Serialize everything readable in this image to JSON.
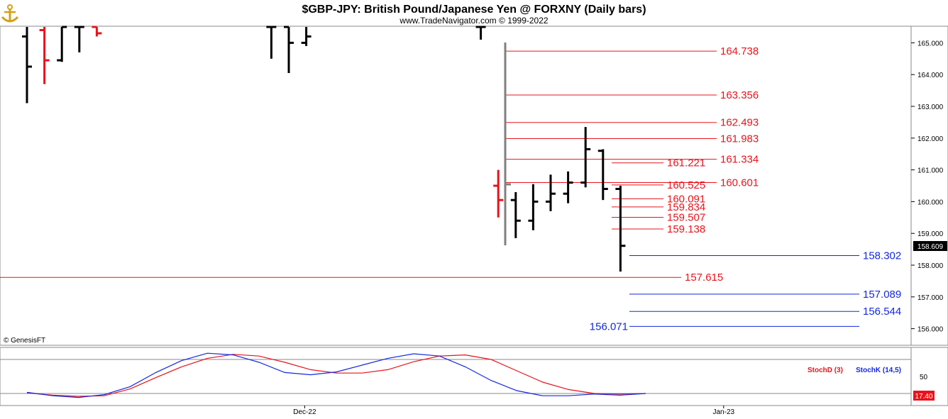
{
  "header": {
    "title": "$GBP-JPY:  British Pound/Japanese Yen @ FORXNY  (Daily bars)",
    "subtitle": "www.TradeNavigator.com © 1999-2022",
    "watermark": "© GenesisFT"
  },
  "price_badge": "158.609",
  "oscillator_badge": "17.40",
  "colors": {
    "up": "#000000",
    "down": "#e8131b",
    "red_level": "#e8131b",
    "blue_level": "#1428e0",
    "stoch_k": "#1428e0",
    "stoch_d": "#e8131b",
    "gap_marker": "#808080"
  },
  "chart_data": [
    {
      "type": "bar",
      "subtype": "ohlc",
      "title": "$GBP-JPY:  British Pound/Japanese Yen @ FORXNY  (Daily bars)",
      "ylim": [
        155.5,
        165.5
      ],
      "y_tick_labels": [
        "156.000",
        "157.000",
        "158.000",
        "159.000",
        "160.000",
        "161.000",
        "162.000",
        "163.000",
        "164.000",
        "165.000"
      ],
      "x_tick_labels": [
        {
          "label": "Dec-22",
          "bar": 14
        },
        {
          "label": "Jan-23",
          "bar": 38
        }
      ],
      "bars": [
        {
          "i": 0,
          "o": 165.2,
          "h": 165.5,
          "l": 163.1,
          "c": 164.25,
          "color": "up"
        },
        {
          "i": 1,
          "o": 165.4,
          "h": 165.5,
          "l": 163.7,
          "c": 164.45,
          "color": "down"
        },
        {
          "i": 2,
          "o": 164.45,
          "h": 165.5,
          "l": 164.4,
          "c": 165.5,
          "color": "up"
        },
        {
          "i": 3,
          "o": 165.5,
          "h": 165.5,
          "l": 164.7,
          "c": 165.5,
          "color": "up"
        },
        {
          "i": 4,
          "o": 165.5,
          "h": 165.5,
          "l": 165.2,
          "c": 165.3,
          "color": "down"
        },
        {
          "i": 14,
          "o": 165.5,
          "h": 165.5,
          "l": 164.5,
          "c": 165.5,
          "color": "up"
        },
        {
          "i": 15,
          "o": 165.5,
          "h": 165.5,
          "l": 164.05,
          "c": 165.0,
          "color": "up"
        },
        {
          "i": 16,
          "o": 165.0,
          "h": 165.5,
          "l": 164.9,
          "c": 165.2,
          "color": "up"
        },
        {
          "i": 26,
          "o": 165.5,
          "h": 165.5,
          "l": 165.1,
          "c": 165.5,
          "color": "up"
        },
        {
          "i": 27,
          "o": 160.5,
          "h": 161.0,
          "l": 159.5,
          "c": 160.05,
          "color": "down"
        },
        {
          "i": 28,
          "o": 160.05,
          "h": 160.3,
          "l": 158.85,
          "c": 159.4,
          "color": "up"
        },
        {
          "i": 29,
          "o": 159.4,
          "h": 160.55,
          "l": 159.1,
          "c": 160.0,
          "color": "up"
        },
        {
          "i": 30,
          "o": 160.0,
          "h": 160.85,
          "l": 159.7,
          "c": 160.25,
          "color": "up"
        },
        {
          "i": 31,
          "o": 160.25,
          "h": 160.95,
          "l": 159.95,
          "c": 160.6,
          "color": "up"
        },
        {
          "i": 32,
          "o": 160.6,
          "h": 162.35,
          "l": 160.45,
          "c": 161.65,
          "color": "up"
        },
        {
          "i": 33,
          "o": 161.6,
          "h": 161.65,
          "l": 160.05,
          "c": 160.4,
          "color": "up"
        },
        {
          "i": 34,
          "o": 160.4,
          "h": 160.5,
          "l": 157.8,
          "c": 158.609,
          "color": "up"
        }
      ],
      "levels": [
        {
          "value": "164.738",
          "color": "red"
        },
        {
          "value": "163.356",
          "color": "red"
        },
        {
          "value": "162.493",
          "color": "red"
        },
        {
          "value": "161.983",
          "color": "red"
        },
        {
          "value": "161.334",
          "color": "red"
        },
        {
          "value": "161.221",
          "color": "red"
        },
        {
          "value": "160.601",
          "color": "red"
        },
        {
          "value": "160.525",
          "color": "red"
        },
        {
          "value": "160.091",
          "color": "red"
        },
        {
          "value": "159.834",
          "color": "red"
        },
        {
          "value": "159.507",
          "color": "red"
        },
        {
          "value": "159.138",
          "color": "red"
        },
        {
          "value": "158.302",
          "color": "blue"
        },
        {
          "value": "157.615",
          "color": "red"
        },
        {
          "value": "157.089",
          "color": "blue"
        },
        {
          "value": "156.544",
          "color": "blue"
        },
        {
          "value": "156.071",
          "color": "blue"
        }
      ]
    },
    {
      "type": "line",
      "ylim": [
        0,
        100
      ],
      "y_tick_labels": [
        "50"
      ],
      "reference_lines": [
        80,
        20
      ],
      "series": [
        {
          "name": "StochD (3)",
          "color": "#e8131b",
          "values": [
            21,
            17,
            15,
            16,
            28,
            48,
            67,
            82,
            89,
            86,
            75,
            62,
            56,
            56,
            62,
            76,
            86,
            88,
            80,
            60,
            40,
            27,
            20,
            19,
            20
          ]
        },
        {
          "name": "StochK (14,5)",
          "color": "#1428e0",
          "values": [
            22,
            16,
            13,
            18,
            32,
            57,
            78,
            91,
            88,
            75,
            57,
            53,
            58,
            70,
            82,
            90,
            86,
            67,
            43,
            25,
            16,
            16,
            19,
            17,
            20
          ]
        }
      ]
    }
  ]
}
